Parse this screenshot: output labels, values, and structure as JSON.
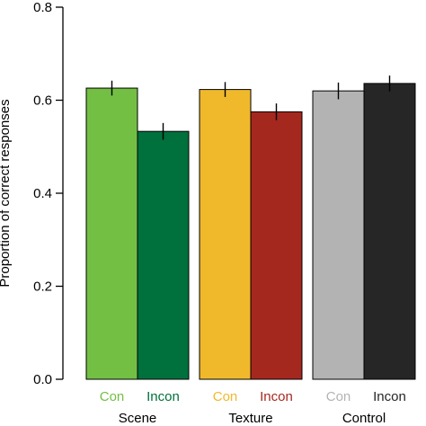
{
  "chart_data": {
    "type": "bar",
    "ylabel": "Proportion of correct responses",
    "ylim": [
      0,
      0.8
    ],
    "yticks": [
      "0.0",
      "0.2",
      "0.4",
      "0.6",
      "0.8"
    ],
    "grid": false,
    "groups": [
      {
        "name": "Scene",
        "bars": [
          {
            "label": "Con",
            "value": 0.626,
            "err": 0.016,
            "color": "#72bf44",
            "label_color": "#72bf44"
          },
          {
            "label": "Incon",
            "value": 0.533,
            "err": 0.018,
            "color": "#00703c",
            "label_color": "#00703c"
          }
        ]
      },
      {
        "name": "Texture",
        "bars": [
          {
            "label": "Con",
            "value": 0.623,
            "err": 0.016,
            "color": "#f0b92c",
            "label_color": "#f0b92c"
          },
          {
            "label": "Incon",
            "value": 0.575,
            "err": 0.018,
            "color": "#a5281f",
            "label_color": "#a5281f"
          }
        ]
      },
      {
        "name": "Control",
        "bars": [
          {
            "label": "Con",
            "value": 0.62,
            "err": 0.018,
            "color": "#b3b3b3",
            "label_color": "#b3b3b3"
          },
          {
            "label": "Incon",
            "value": 0.636,
            "err": 0.017,
            "color": "#262626",
            "label_color": "#262626"
          }
        ]
      }
    ]
  }
}
